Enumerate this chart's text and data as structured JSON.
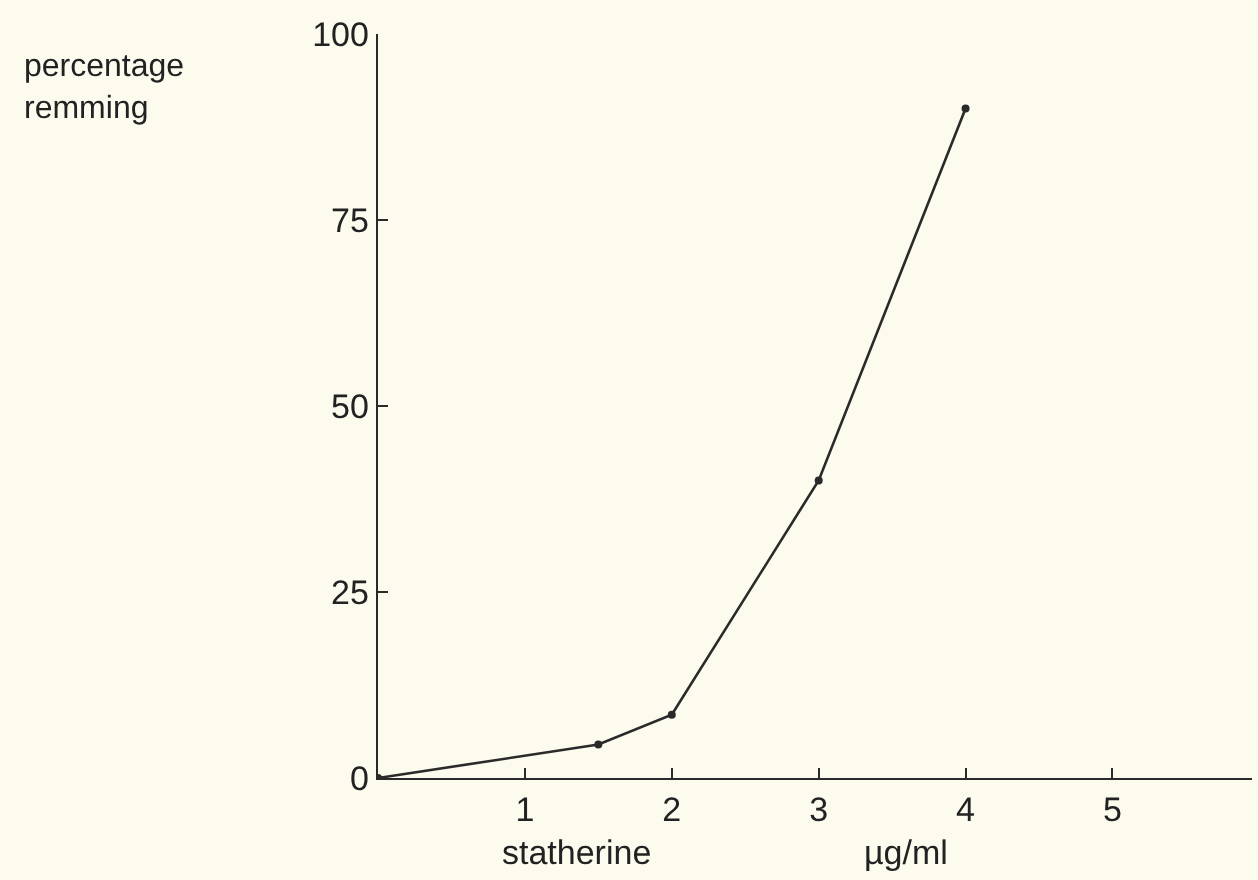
{
  "chart_data": {
    "type": "line",
    "xlabel": "statherine",
    "annotations": [
      "percentage\nremming",
      "µg/ml"
    ],
    "x": [
      0,
      1.5,
      2,
      3,
      4
    ],
    "series": [
      {
        "color": "#2a2a2a",
        "values": [
          0,
          4.5,
          8.5,
          40,
          90
        ]
      }
    ],
    "xlim": [
      0,
      5.95
    ],
    "xticks": [
      1,
      2,
      3,
      4,
      5
    ],
    "ylim": [
      0,
      100
    ],
    "yticks": [
      0,
      25,
      50,
      75,
      100
    ],
    "grid": false,
    "marker": "circle",
    "line_style": "solid"
  }
}
